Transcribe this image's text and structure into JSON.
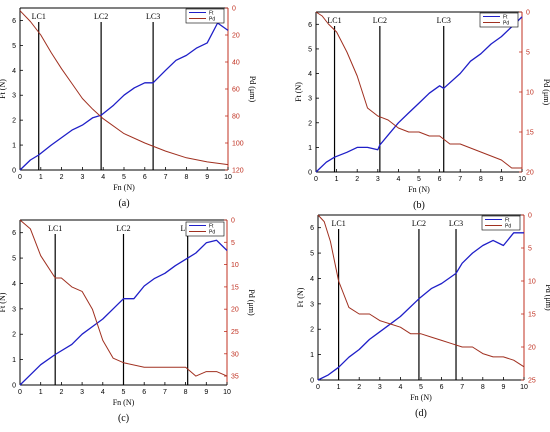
{
  "chart_data": [
    {
      "type": "line",
      "panel_label": "(a)",
      "xlabel": "Fn (N)",
      "ylabel_left": "Ft (N)",
      "ylabel_right": "Pd (μm)",
      "xlim": [
        0,
        10
      ],
      "ylim_left": [
        0,
        6.5
      ],
      "ylim_right": [
        0,
        120
      ],
      "x_ticks": [
        0,
        1,
        2,
        3,
        4,
        5,
        6,
        7,
        8,
        9,
        10
      ],
      "y_left_ticks": [
        0,
        1,
        2,
        3,
        4,
        5,
        6
      ],
      "y_right_ticks": [
        0,
        20,
        40,
        60,
        80,
        100,
        120
      ],
      "right_axis_inverted": true,
      "legend": {
        "placement": "top-right",
        "entries": [
          "Ft",
          "Pd"
        ]
      },
      "critical_loads": [
        {
          "label": "LC1",
          "x": 0.9
        },
        {
          "label": "LC2",
          "x": 3.9
        },
        {
          "label": "LC3",
          "x": 6.4
        }
      ],
      "series": [
        {
          "name": "Ft",
          "axis": "left",
          "color": "#1f1fc8",
          "x": [
            0,
            0.5,
            0.9,
            1.5,
            2.0,
            2.5,
            3.0,
            3.5,
            3.9,
            4.5,
            5.0,
            5.5,
            6.0,
            6.4,
            7.0,
            7.5,
            8.0,
            8.5,
            9.0,
            9.5,
            10.0
          ],
          "y": [
            0.0,
            0.4,
            0.6,
            1.0,
            1.3,
            1.6,
            1.8,
            2.1,
            2.2,
            2.6,
            3.0,
            3.3,
            3.5,
            3.5,
            4.0,
            4.4,
            4.6,
            4.9,
            5.1,
            5.9,
            5.6
          ]
        },
        {
          "name": "Pd",
          "axis": "right",
          "color": "#a03020",
          "x": [
            0,
            0.5,
            1.0,
            1.5,
            2.0,
            2.5,
            3.0,
            3.5,
            4.0,
            5.0,
            6.0,
            7.0,
            8.0,
            9.0,
            10.0
          ],
          "y": [
            2,
            10,
            20,
            33,
            45,
            56,
            67,
            75,
            82,
            93,
            100,
            106,
            111,
            114,
            116
          ]
        }
      ]
    },
    {
      "type": "line",
      "panel_label": "(b)",
      "xlabel": "Fn (N)",
      "ylabel_left": "Ft (N)",
      "ylabel_right": "Pd (μm)",
      "xlim": [
        0,
        10
      ],
      "ylim_left": [
        0,
        6.5
      ],
      "ylim_right": [
        0,
        20
      ],
      "x_ticks": [
        0,
        1,
        2,
        3,
        4,
        5,
        6,
        7,
        8,
        9,
        10
      ],
      "y_left_ticks": [
        0,
        1,
        2,
        3,
        4,
        5,
        6
      ],
      "y_right_ticks": [
        0,
        5,
        10,
        15,
        20
      ],
      "right_axis_inverted": true,
      "legend": {
        "placement": "top-right",
        "entries": [
          "Ft",
          "Pd"
        ]
      },
      "critical_loads": [
        {
          "label": "LC1",
          "x": 0.9
        },
        {
          "label": "LC2",
          "x": 3.1
        },
        {
          "label": "LC3",
          "x": 6.2
        }
      ],
      "series": [
        {
          "name": "Ft",
          "axis": "left",
          "color": "#1f1fc8",
          "x": [
            0,
            0.5,
            0.9,
            1.5,
            2.0,
            2.5,
            3.0,
            3.1,
            3.5,
            4.0,
            4.5,
            5.0,
            5.5,
            6.0,
            6.2,
            7.0,
            7.5,
            8.0,
            8.5,
            9.0,
            9.5,
            10.0
          ],
          "y": [
            0.0,
            0.4,
            0.6,
            0.8,
            1.0,
            1.0,
            0.9,
            1.1,
            1.5,
            2.0,
            2.4,
            2.8,
            3.2,
            3.5,
            3.4,
            4.0,
            4.5,
            4.8,
            5.2,
            5.5,
            5.9,
            6.3
          ]
        },
        {
          "name": "Pd",
          "axis": "right",
          "color": "#a03020",
          "x": [
            0,
            0.3,
            0.6,
            1.0,
            1.5,
            2.0,
            2.5,
            3.0,
            3.5,
            4.0,
            4.5,
            5.0,
            5.5,
            6.0,
            6.5,
            7.0,
            7.5,
            8.0,
            8.5,
            9.0,
            9.5,
            10.0
          ],
          "y": [
            0,
            0.5,
            1.5,
            2.5,
            5.0,
            8.0,
            12.0,
            13.0,
            13.5,
            14.5,
            15.0,
            15.0,
            15.5,
            15.5,
            16.5,
            16.5,
            17.0,
            17.5,
            18.0,
            18.5,
            19.5,
            19.5
          ]
        }
      ]
    },
    {
      "type": "line",
      "panel_label": "(c)",
      "xlabel": "Fn (N)",
      "ylabel_left": "Ft (N)",
      "ylabel_right": "Pd (μm)",
      "xlim": [
        0,
        10
      ],
      "ylim_left": [
        0,
        6.5
      ],
      "ylim_right": [
        0,
        37
      ],
      "x_ticks": [
        0,
        1,
        2,
        3,
        4,
        5,
        6,
        7,
        8,
        9,
        10
      ],
      "y_left_ticks": [
        0,
        1,
        2,
        3,
        4,
        5,
        6
      ],
      "y_right_ticks": [
        0,
        5,
        10,
        15,
        20,
        25,
        30,
        35
      ],
      "right_axis_inverted": true,
      "legend": {
        "placement": "top-right",
        "entries": [
          "Ft",
          "Pd"
        ]
      },
      "critical_loads": [
        {
          "label": "LC1",
          "x": 1.7
        },
        {
          "label": "LC2",
          "x": 5.0
        },
        {
          "label": "LC3",
          "x": 8.1
        }
      ],
      "series": [
        {
          "name": "Ft",
          "axis": "left",
          "color": "#1f1fc8",
          "x": [
            0,
            0.5,
            1.0,
            1.7,
            2.5,
            3.0,
            3.5,
            4.0,
            4.5,
            5.0,
            5.5,
            6.0,
            6.5,
            7.0,
            7.5,
            8.1,
            8.5,
            9.0,
            9.5,
            10.0
          ],
          "y": [
            0.0,
            0.4,
            0.8,
            1.2,
            1.6,
            2.0,
            2.3,
            2.6,
            3.0,
            3.4,
            3.4,
            3.9,
            4.2,
            4.4,
            4.7,
            5.0,
            5.2,
            5.6,
            5.7,
            5.3
          ]
        },
        {
          "name": "Pd",
          "axis": "right",
          "color": "#a03020",
          "x": [
            0,
            0.5,
            1.0,
            1.7,
            2.0,
            2.5,
            3.0,
            3.5,
            4.0,
            4.5,
            5.0,
            6.0,
            7.0,
            8.0,
            8.5,
            9.0,
            9.5,
            10.0
          ],
          "y": [
            0,
            2,
            8,
            13,
            13,
            15,
            16,
            20,
            27,
            31,
            32,
            33,
            33,
            33,
            35,
            34,
            34,
            35
          ]
        }
      ]
    },
    {
      "type": "line",
      "panel_label": "(d)",
      "xlabel": "Fn (N)",
      "ylabel_left": "Ft (N)",
      "ylabel_right": "Pd (μm)",
      "xlim": [
        0,
        10
      ],
      "ylim_left": [
        0,
        6.5
      ],
      "ylim_right": [
        0,
        25
      ],
      "x_ticks": [
        0,
        1,
        2,
        3,
        4,
        5,
        6,
        7,
        8,
        9,
        10
      ],
      "y_left_ticks": [
        0,
        1,
        2,
        3,
        4,
        5,
        6
      ],
      "y_right_ticks": [
        0,
        5,
        10,
        15,
        20,
        25
      ],
      "right_axis_inverted": true,
      "legend": {
        "placement": "top-right",
        "entries": [
          "Ft",
          "Pd"
        ]
      },
      "critical_loads": [
        {
          "label": "LC1",
          "x": 1.0
        },
        {
          "label": "LC2",
          "x": 4.9
        },
        {
          "label": "LC3",
          "x": 6.7
        }
      ],
      "series": [
        {
          "name": "Ft",
          "axis": "left",
          "color": "#1f1fc8",
          "x": [
            0,
            0.5,
            1.0,
            1.5,
            2.0,
            2.5,
            3.0,
            3.5,
            4.0,
            4.9,
            5.5,
            6.0,
            6.7,
            7.0,
            7.5,
            8.0,
            8.5,
            9.0,
            9.5,
            10.0
          ],
          "y": [
            0.0,
            0.2,
            0.5,
            0.9,
            1.2,
            1.6,
            1.9,
            2.2,
            2.5,
            3.2,
            3.6,
            3.8,
            4.2,
            4.6,
            5.0,
            5.3,
            5.5,
            5.3,
            5.8,
            5.8
          ]
        },
        {
          "name": "Pd",
          "axis": "right",
          "color": "#a03020",
          "x": [
            0,
            0.3,
            0.6,
            1.0,
            1.5,
            2.0,
            2.5,
            3.0,
            3.5,
            4.0,
            4.5,
            5.0,
            5.5,
            6.0,
            6.5,
            7.0,
            7.5,
            8.0,
            8.5,
            9.0,
            9.5,
            10.0
          ],
          "y": [
            0,
            1,
            4,
            10,
            14,
            15,
            15,
            16,
            16.5,
            17,
            18,
            18,
            18.5,
            19,
            19.5,
            20,
            20,
            21,
            21.5,
            21.5,
            22,
            23
          ]
        }
      ]
    }
  ]
}
